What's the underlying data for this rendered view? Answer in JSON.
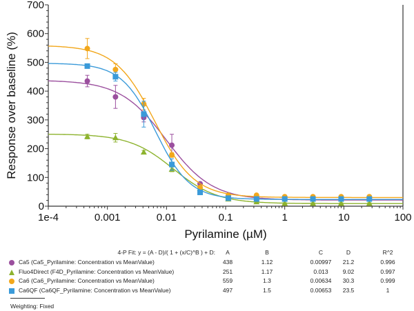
{
  "chart_data": {
    "type": "scatter",
    "title": "",
    "xlabel": "Pyrilamine (µM)",
    "ylabel": "Response over baseline (%)",
    "xscale": "log",
    "xlim": [
      0.0001,
      100
    ],
    "ylim": [
      0,
      700
    ],
    "xticks": [
      "1e-4",
      "0.001",
      "0.01",
      "0.1",
      "1",
      "10",
      "100"
    ],
    "yticks": [
      "0",
      "100",
      "200",
      "300",
      "400",
      "500",
      "600",
      "700"
    ],
    "grid": false,
    "x": [
      0.000457,
      0.00137,
      0.00412,
      0.0123,
      0.037,
      0.111,
      0.333,
      1,
      3,
      9,
      27
    ],
    "fit_header": "4-P Fit: y = (A - D)/( 1 + (x/C)^B ) + D:",
    "columns": [
      "A",
      "B",
      "C",
      "D",
      "R^2"
    ],
    "series": [
      {
        "name": "Ca5 (Ca5_Pyrilamine: Concentration vs MeanValue)",
        "color": "#9b4f9e",
        "marker": "circle",
        "y": [
          435,
          380,
          308,
          212,
          78,
          35,
          30,
          27,
          27,
          25,
          25
        ],
        "err": [
          20,
          40,
          15,
          38,
          6,
          3,
          3,
          2,
          2,
          2,
          2
        ],
        "fit": {
          "A": "438",
          "B": "1.12",
          "C": "0.00997",
          "D": "21.2",
          "R2": "0.996"
        },
        "params": [
          438,
          1.12,
          0.00997,
          21.2
        ]
      },
      {
        "name": "Fluo4Direct (F4D_Pyrilamine: Concentration vs MeanValue)",
        "color": "#8db32e",
        "marker": "triangle",
        "y": [
          242,
          238,
          188,
          128,
          62,
          25,
          15,
          10,
          10,
          10,
          10
        ],
        "err": [
          8,
          15,
          6,
          8,
          4,
          2,
          2,
          2,
          2,
          2,
          2
        ],
        "fit": {
          "A": "251",
          "B": "1.17",
          "C": "0.013",
          "D": "9.02",
          "R2": "0.997"
        },
        "params": [
          251,
          1.17,
          0.013,
          9.02
        ]
      },
      {
        "name": "Ca6 (Ca6_Pyrilamine: Concentration vs MeanValue)",
        "color": "#f2a71b",
        "marker": "circle",
        "y": [
          548,
          475,
          355,
          178,
          65,
          38,
          38,
          33,
          33,
          33,
          33
        ],
        "err": [
          35,
          20,
          20,
          8,
          5,
          3,
          3,
          2,
          2,
          2,
          2
        ],
        "fit": {
          "A": "559",
          "B": "1.3",
          "C": "0.00634",
          "D": "30.3",
          "R2": "0.999"
        },
        "params": [
          559,
          1.3,
          0.00634,
          30.3
        ]
      },
      {
        "name": "Ca6QF (Ca6QF_Pyrilamine: Concentration vs MeanValue)",
        "color": "#3a9ad9",
        "marker": "square",
        "y": [
          487,
          450,
          320,
          145,
          48,
          28,
          25,
          25,
          25,
          25,
          25
        ],
        "err": [
          6,
          15,
          45,
          20,
          4,
          3,
          2,
          2,
          2,
          2,
          2
        ],
        "fit": {
          "A": "497",
          "B": "1.5",
          "C": "0.00653",
          "D": "23.5",
          "R2": "1"
        },
        "params": [
          497,
          1.5,
          0.00653,
          23.5
        ]
      }
    ],
    "weighting": "Weighting: Fixed"
  }
}
